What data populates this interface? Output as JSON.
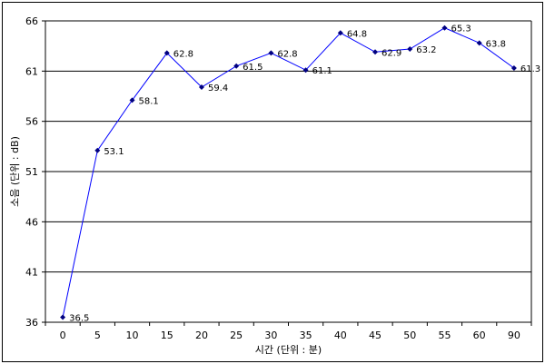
{
  "chart_data": {
    "type": "line",
    "xlabel": "시간 (단위 : 분)",
    "ylabel": "소음 (단위 : dB)",
    "categories": [
      "0",
      "5",
      "10",
      "15",
      "20",
      "25",
      "30",
      "35",
      "40",
      "45",
      "50",
      "55",
      "60",
      "90"
    ],
    "series": [
      {
        "values": [
          36.5,
          53.1,
          58.1,
          62.8,
          59.4,
          61.5,
          62.8,
          61.1,
          64.8,
          62.9,
          63.2,
          65.3,
          63.8,
          61.3
        ]
      }
    ],
    "ylim": [
      36,
      66
    ],
    "yticks": [
      36,
      41,
      46,
      51,
      56,
      61,
      66
    ],
    "grid": true,
    "colors": {
      "line": "#0000ff",
      "marker": "#000080",
      "grid": "#000000"
    }
  }
}
